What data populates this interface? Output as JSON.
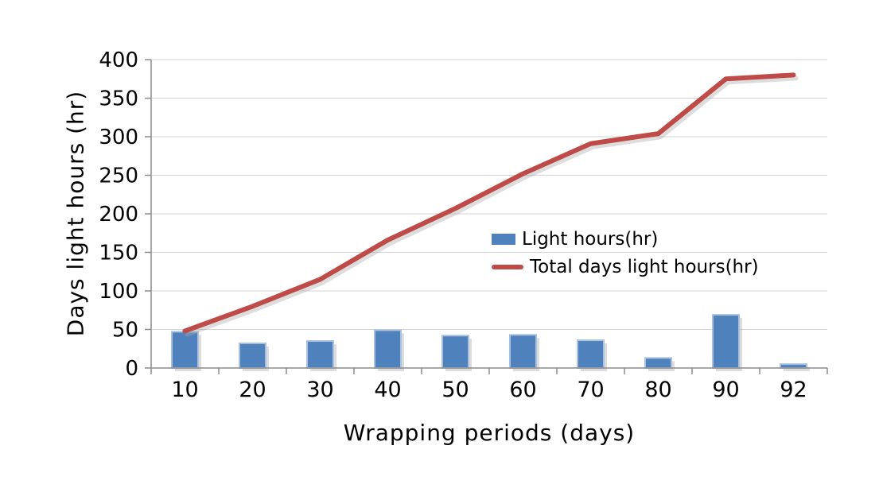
{
  "chart_data": {
    "type": "bar",
    "subtype": "bar+line-combo",
    "categories": [
      "10",
      "20",
      "30",
      "40",
      "50",
      "60",
      "70",
      "80",
      "90",
      "92"
    ],
    "series": [
      {
        "name": "Light hours(hr)",
        "type": "bar",
        "color": "#4F81BD",
        "border_color": "#A9C0DE",
        "values": [
          47,
          32,
          35,
          49,
          42,
          43,
          36,
          13,
          69,
          5
        ]
      },
      {
        "name": "Total days light hours(hr)",
        "type": "line",
        "color": "#BE4B48",
        "values": [
          48,
          80,
          115,
          166,
          207,
          252,
          291,
          304,
          375,
          380
        ]
      }
    ],
    "xlabel": "Wrapping periods (days)",
    "ylabel": "Days light hours (hr)",
    "ylim": [
      0,
      400
    ],
    "ytick_step": 50,
    "ytick_labels": [
      "0",
      "50",
      "100",
      "150",
      "200",
      "250",
      "300",
      "350",
      "400"
    ],
    "grid": true,
    "gridline_color": "#D3D3D3",
    "axis_color": "#8C8C8C",
    "legend_position": "inside-middle-right",
    "background": "#FFFFFF"
  }
}
